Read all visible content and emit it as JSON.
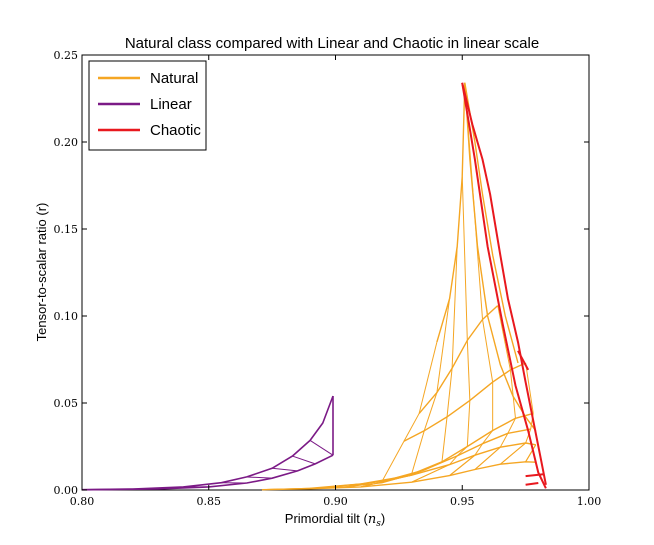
{
  "chart_data": {
    "type": "line",
    "title": "Natural class compared with Linear and Chaotic in linear scale",
    "xlabel": "Primordial tilt (",
    "xlabel_sym": "n",
    "xlabel_sub": "s",
    "xlabel_end": ")",
    "ylabel": "Tensor-to-scalar ratio (r)",
    "xlim": [
      0.8,
      1.0
    ],
    "ylim": [
      0.0,
      0.25
    ],
    "xticks": [
      {
        "value": 0.8,
        "label": "0.80"
      },
      {
        "value": 0.85,
        "label": "0.85"
      },
      {
        "value": 0.9,
        "label": "0.90"
      },
      {
        "value": 0.95,
        "label": "0.95"
      },
      {
        "value": 1.0,
        "label": "1.00"
      }
    ],
    "yticks": [
      {
        "value": 0.0,
        "label": "0.00"
      },
      {
        "value": 0.05,
        "label": "0.05"
      },
      {
        "value": 0.1,
        "label": "0.10"
      },
      {
        "value": 0.15,
        "label": "0.15"
      },
      {
        "value": 0.2,
        "label": "0.20"
      },
      {
        "value": 0.25,
        "label": "0.25"
      }
    ],
    "grid": false,
    "legend_position": "top-left",
    "series": [
      {
        "name": "Natural",
        "color": "#f5a623",
        "note_curves": "family of curves rising from low r at small n_s to a peak near (0.951, 0.234)",
        "curves": [
          [
            [
              0.871,
              0.0002
            ],
            [
              0.89,
              0.0007
            ],
            [
              0.91,
              0.0018
            ],
            [
              0.93,
              0.0045
            ],
            [
              0.945,
              0.0083
            ],
            [
              0.955,
              0.0118
            ],
            [
              0.965,
              0.0148
            ],
            [
              0.975,
              0.0162
            ],
            [
              0.979,
              0.016
            ]
          ],
          [
            [
              0.89,
              0.001
            ],
            [
              0.91,
              0.0035
            ],
            [
              0.93,
              0.0085
            ],
            [
              0.945,
              0.0146
            ],
            [
              0.955,
              0.02
            ],
            [
              0.965,
              0.0246
            ],
            [
              0.975,
              0.027
            ],
            [
              0.979,
              0.026
            ]
          ],
          [
            [
              0.905,
              0.002
            ],
            [
              0.92,
              0.0055
            ],
            [
              0.935,
              0.0115
            ],
            [
              0.948,
              0.0196
            ],
            [
              0.958,
              0.0266
            ],
            [
              0.968,
              0.0326
            ],
            [
              0.977,
              0.035
            ]
          ],
          [
            [
              0.918,
              0.004
            ],
            [
              0.93,
              0.009
            ],
            [
              0.942,
              0.0162
            ],
            [
              0.952,
              0.025
            ],
            [
              0.962,
              0.0342
            ],
            [
              0.971,
              0.0412
            ],
            [
              0.978,
              0.044
            ]
          ],
          [
            [
              0.927,
              0.028
            ],
            [
              0.935,
              0.034
            ],
            [
              0.944,
              0.042
            ],
            [
              0.953,
              0.0515
            ],
            [
              0.962,
              0.062
            ],
            [
              0.969,
              0.069
            ],
            [
              0.975,
              0.073
            ]
          ],
          [
            [
              0.933,
              0.044
            ],
            [
              0.94,
              0.056
            ],
            [
              0.946,
              0.07
            ],
            [
              0.952,
              0.086
            ],
            [
              0.958,
              0.098
            ],
            [
              0.964,
              0.106
            ]
          ],
          [
            [
              0.94,
              0.085
            ],
            [
              0.945,
              0.11
            ],
            [
              0.948,
              0.14
            ],
            [
              0.95,
              0.18
            ],
            [
              0.951,
              0.234
            ]
          ],
          [
            [
              0.951,
              0.234
            ],
            [
              0.953,
              0.19
            ],
            [
              0.956,
              0.14
            ],
            [
              0.96,
              0.1
            ],
            [
              0.965,
              0.072
            ],
            [
              0.97,
              0.054
            ],
            [
              0.975,
              0.042
            ],
            [
              0.979,
              0.034
            ]
          ],
          [
            [
              0.951,
              0.234
            ],
            [
              0.955,
              0.2
            ],
            [
              0.958,
              0.17
            ],
            [
              0.962,
              0.135
            ],
            [
              0.967,
              0.1
            ],
            [
              0.972,
              0.073
            ]
          ]
        ]
      },
      {
        "name": "Linear",
        "color": "#7b1a86",
        "curves": [
          [
            [
              0.8,
              0.0002
            ],
            [
              0.82,
              0.0006
            ],
            [
              0.84,
              0.0018
            ],
            [
              0.855,
              0.0042
            ],
            [
              0.865,
              0.0075
            ],
            [
              0.875,
              0.0125
            ],
            [
              0.883,
              0.0195
            ],
            [
              0.89,
              0.0285
            ],
            [
              0.895,
              0.0385
            ],
            [
              0.899,
              0.054
            ]
          ],
          [
            [
              0.8,
              0.0001
            ],
            [
              0.83,
              0.0006
            ],
            [
              0.85,
              0.0018
            ],
            [
              0.865,
              0.004
            ],
            [
              0.875,
              0.0068
            ],
            [
              0.885,
              0.011
            ],
            [
              0.892,
              0.015
            ],
            [
              0.899,
              0.02
            ]
          ],
          [
            [
              0.899,
              0.02
            ],
            [
              0.899,
              0.054
            ]
          ]
        ]
      },
      {
        "name": "Chaotic",
        "color": "#e8181e",
        "curves": [
          [
            [
              0.95,
              0.234
            ],
            [
              0.955,
              0.19
            ],
            [
              0.96,
              0.14
            ],
            [
              0.966,
              0.095
            ],
            [
              0.971,
              0.06
            ],
            [
              0.976,
              0.034
            ],
            [
              0.98,
              0.01
            ],
            [
              0.983,
              0.001
            ]
          ],
          [
            [
              0.95,
              0.234
            ],
            [
              0.954,
              0.21
            ],
            [
              0.958,
              0.19
            ],
            [
              0.961,
              0.17
            ],
            [
              0.965,
              0.135
            ],
            [
              0.968,
              0.11
            ],
            [
              0.972,
              0.085
            ],
            [
              0.975,
              0.062
            ],
            [
              0.978,
              0.04
            ],
            [
              0.981,
              0.018
            ],
            [
              0.983,
              0.003
            ]
          ],
          [
            [
              0.975,
              0.003
            ],
            [
              0.98,
              0.004
            ]
          ],
          [
            [
              0.975,
              0.008
            ],
            [
              0.982,
              0.009
            ]
          ],
          [
            [
              0.972,
              0.08
            ],
            [
              0.976,
              0.069
            ]
          ]
        ]
      }
    ]
  }
}
